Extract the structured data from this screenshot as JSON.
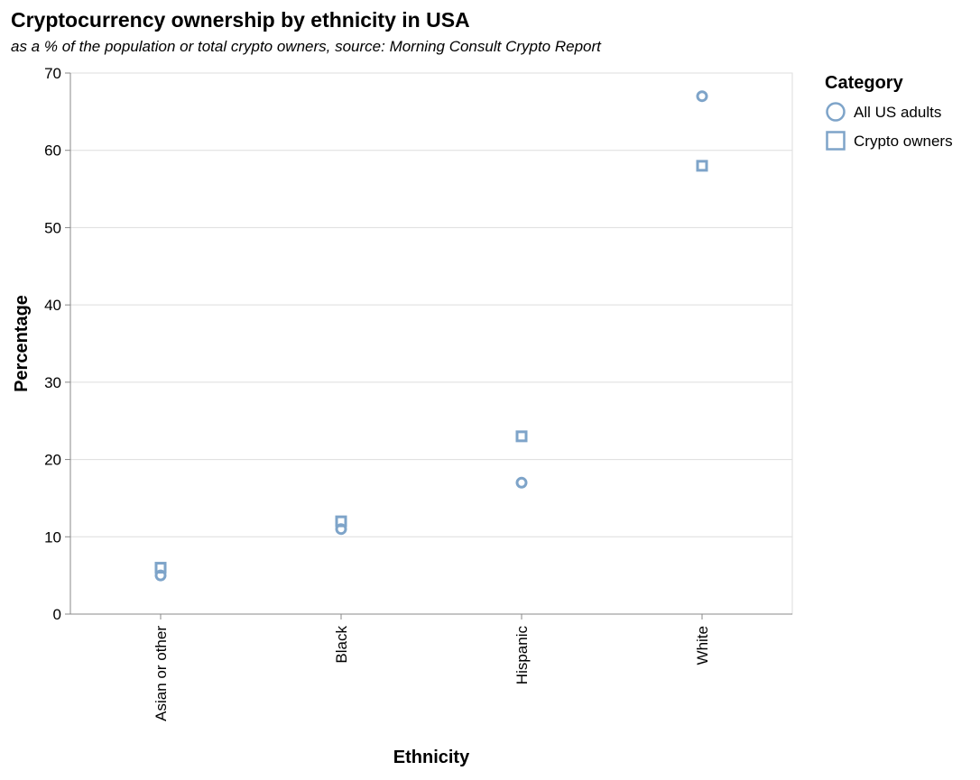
{
  "chart_data": {
    "type": "scatter",
    "title": "Cryptocurrency ownership by ethnicity in USA",
    "subtitle": "as a % of the population or total crypto owners, source: Morning Consult Crypto Report",
    "xlabel": "Ethnicity",
    "ylabel": "Percentage",
    "categories": [
      "Asian or other",
      "Black",
      "Hispanic",
      "White"
    ],
    "ylim": [
      0,
      70
    ],
    "yticks": [
      0,
      10,
      20,
      30,
      40,
      50,
      60,
      70
    ],
    "grid": true,
    "legend": {
      "title": "Category",
      "placement": "right"
    },
    "series": [
      {
        "name": "All US adults",
        "shape": "circle",
        "values": [
          5,
          11,
          17,
          67
        ]
      },
      {
        "name": "Crypto owners",
        "shape": "square",
        "values": [
          6,
          12,
          23,
          58
        ]
      }
    ],
    "colors": {
      "marker": "#7ea4c9",
      "grid": "#dddddd",
      "axis": "#888888"
    }
  }
}
